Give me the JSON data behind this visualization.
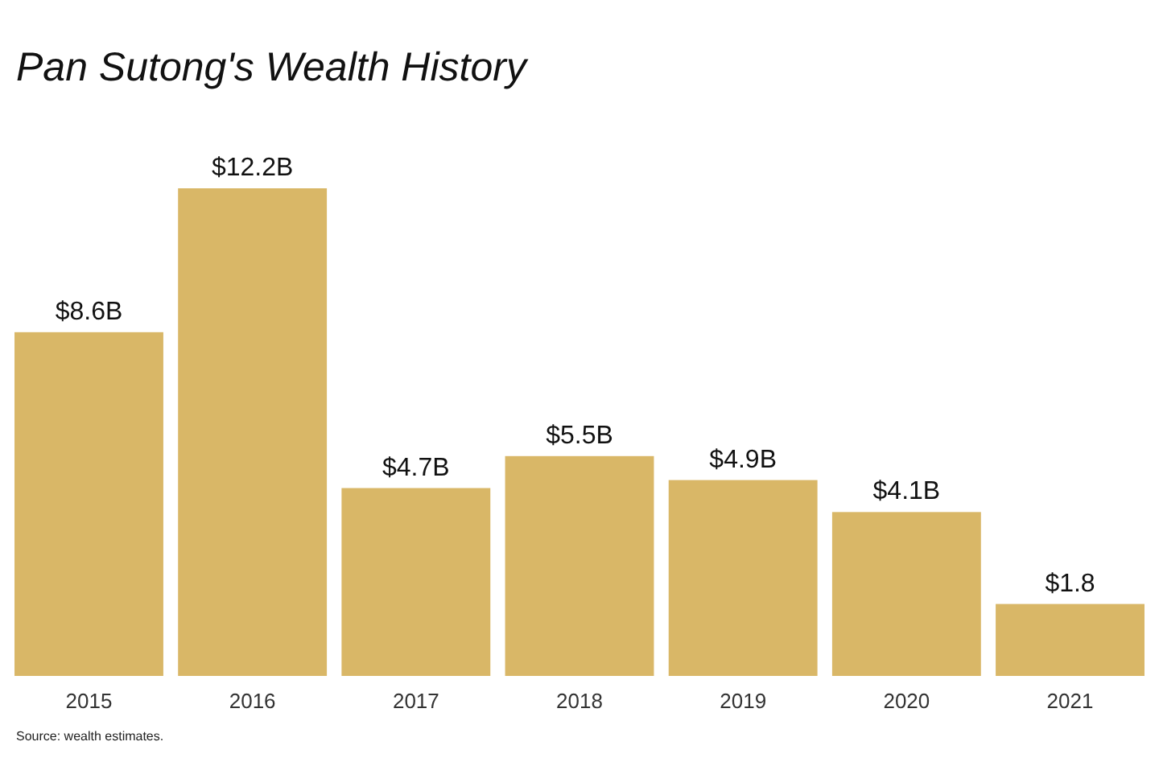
{
  "chart_data": {
    "type": "bar",
    "title": "Pan Sutong's Wealth History",
    "categories": [
      "2015",
      "2016",
      "2017",
      "2018",
      "2019",
      "2020",
      "2021"
    ],
    "values": [
      8.6,
      12.2,
      4.7,
      5.5,
      4.9,
      4.1,
      1.8
    ],
    "value_labels": [
      "$8.6B",
      "$12.2B",
      "$4.7B",
      "$5.5B",
      "$4.9B",
      "$4.1B",
      "$1.8"
    ],
    "color": "#d9b767",
    "annotations": [
      "Source: wealth estimates."
    ]
  }
}
